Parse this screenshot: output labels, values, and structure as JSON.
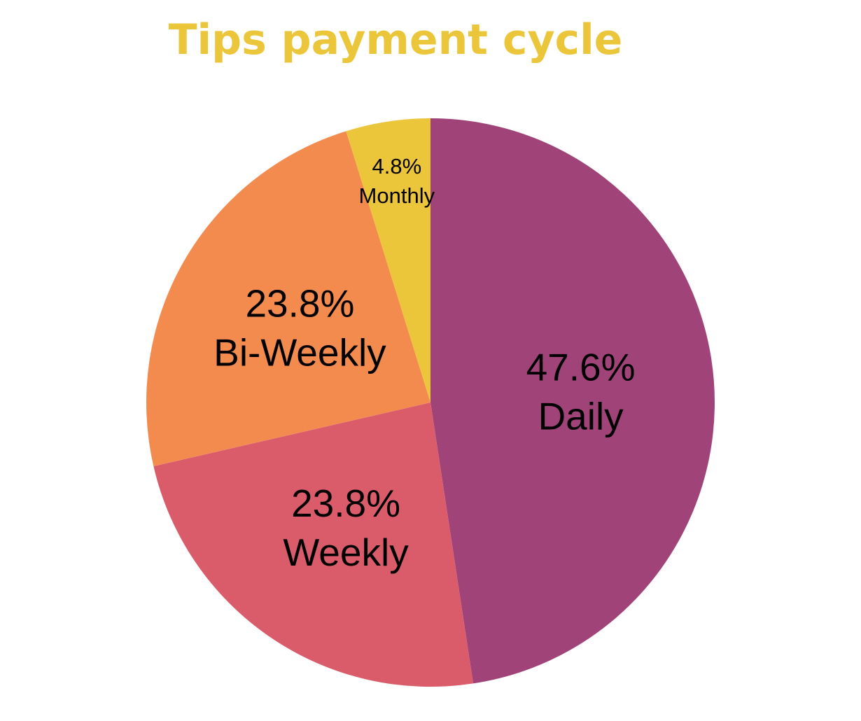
{
  "chart_data": {
    "type": "pie",
    "title": "Tips payment cycle",
    "title_color": "#ECC63A",
    "slices": [
      {
        "label": "Daily",
        "value": 47.6,
        "percent_label": "47.6%",
        "color": "#A04379"
      },
      {
        "label": "Weekly",
        "value": 23.8,
        "percent_label": "23.8%",
        "color": "#DA5C6B"
      },
      {
        "label": "Bi-Weekly",
        "value": 23.8,
        "percent_label": "23.8%",
        "color": "#F38B4F"
      },
      {
        "label": "Monthly",
        "value": 4.8,
        "percent_label": "4.8%",
        "color": "#ECC63A"
      }
    ],
    "start": "12 o'clock",
    "direction": "clockwise",
    "legend": "none"
  }
}
